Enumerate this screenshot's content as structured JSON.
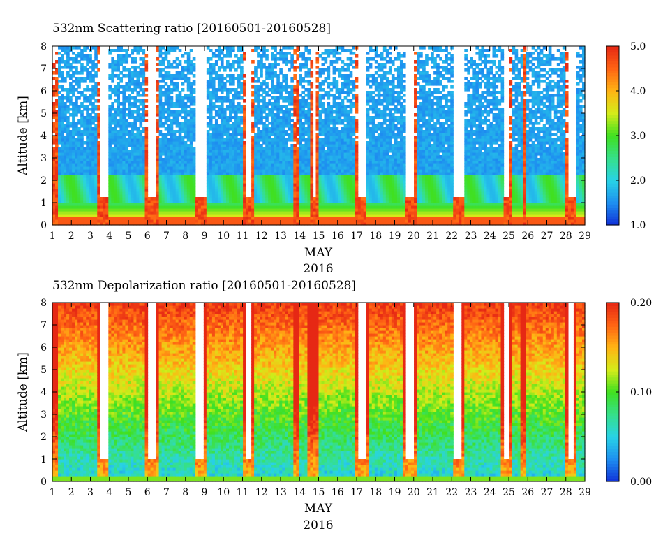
{
  "chart_data": [
    {
      "type": "heatmap",
      "title": "532nm Scattering ratio [20160501-20160528]",
      "ylabel": "Altitude [km]",
      "xlabel_month": "MAY",
      "xlabel_year": "2016",
      "x_ticks": [
        "1",
        "2",
        "3",
        "4",
        "5",
        "6",
        "7",
        "8",
        "9",
        "10",
        "11",
        "12",
        "13",
        "14",
        "15",
        "16",
        "17",
        "18",
        "19",
        "20",
        "21",
        "22",
        "23",
        "24",
        "25",
        "26",
        "27",
        "28",
        "29"
      ],
      "xlim": [
        1,
        29
      ],
      "y_ticks": [
        "0",
        "1",
        "2",
        "3",
        "4",
        "5",
        "6",
        "7",
        "8"
      ],
      "ylim": [
        0,
        8
      ],
      "colorbar": {
        "min": 1.0,
        "max": 5.0,
        "ticks": [
          "1.0",
          "2.0",
          "3.0",
          "4.0",
          "5.0"
        ]
      },
      "colormap": [
        "#1030d8",
        "#1e8ff0",
        "#28d2e6",
        "#36e08a",
        "#40e020",
        "#d4ec1a",
        "#ffb414",
        "#ff6414",
        "#e62814"
      ]
    },
    {
      "type": "heatmap",
      "title": "532nm Depolarization ratio [20160501-20160528]",
      "ylabel": "Altitude [km]",
      "xlabel_month": "MAY",
      "xlabel_year": "2016",
      "x_ticks": [
        "1",
        "2",
        "3",
        "4",
        "5",
        "6",
        "7",
        "8",
        "9",
        "10",
        "11",
        "12",
        "13",
        "14",
        "15",
        "16",
        "17",
        "18",
        "19",
        "20",
        "21",
        "22",
        "23",
        "24",
        "25",
        "26",
        "27",
        "28",
        "29"
      ],
      "xlim": [
        1,
        29
      ],
      "y_ticks": [
        "0",
        "1",
        "2",
        "3",
        "4",
        "5",
        "6",
        "7",
        "8"
      ],
      "ylim": [
        0,
        8
      ],
      "colorbar": {
        "min": 0.0,
        "max": 0.2,
        "ticks": [
          "0.00",
          "0.10",
          "0.20"
        ]
      },
      "colormap": [
        "#1030d8",
        "#1e8ff0",
        "#28d2e6",
        "#36e08a",
        "#40e020",
        "#d4ec1a",
        "#ffb414",
        "#ff6414",
        "#e62814"
      ]
    }
  ]
}
